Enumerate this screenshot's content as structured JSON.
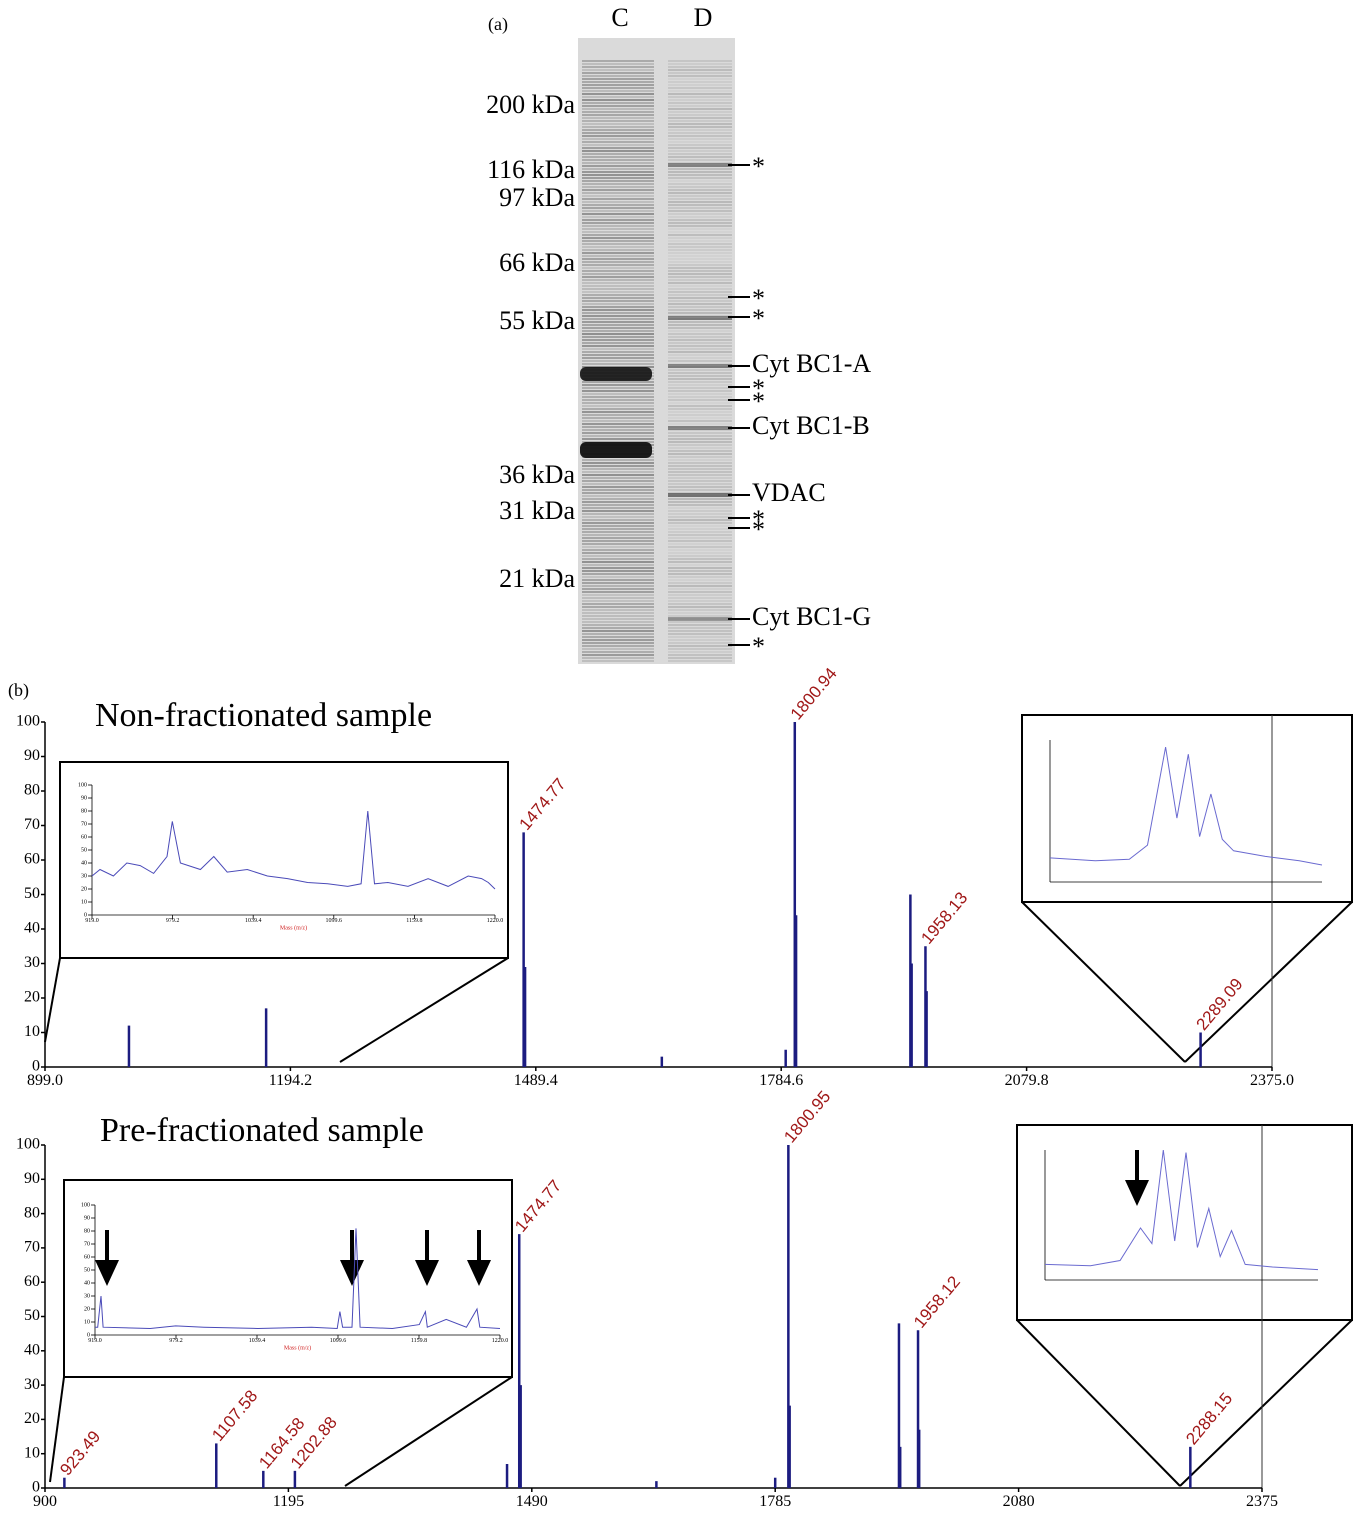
{
  "panel_a": {
    "label": "(a)",
    "lanes": [
      "C",
      "D"
    ],
    "markers": [
      "200 kDa",
      "116 kDa",
      "97 kDa",
      "66 kDa",
      "55 kDa",
      "36 kDa",
      "31 kDa",
      "21 kDa"
    ],
    "annotations": [
      "*",
      "*",
      "*",
      "Cyt BC1-A",
      "*",
      "*",
      "Cyt BC1-B",
      "VDAC",
      "*",
      "*",
      "Cyt BC1-G",
      "*"
    ]
  },
  "panel_b_label": "(b)",
  "chart_data": [
    {
      "type": "stem",
      "title": "Non-fractionated sample",
      "xlim": [
        899,
        2375
      ],
      "xticks": [
        {
          "value": 899,
          "label": "899.0"
        },
        1194.2,
        1489.4,
        1784.6,
        2079.8,
        {
          "value": 2375,
          "label": "2375.0"
        }
      ],
      "ylim": [
        0,
        100
      ],
      "yticks": [
        0,
        10,
        20,
        30,
        40,
        50,
        60,
        70,
        80,
        90,
        100
      ],
      "label_color": "#a01818",
      "series": [
        {
          "color": "#1c1c80",
          "x": [
            1000,
            1165,
            1474.77,
            1476.5,
            1641,
            1790,
            1800.94,
            1802.5,
            1940,
            1941.5,
            1958.13,
            1959.5,
            2289.09
          ],
          "values": [
            12,
            17,
            68,
            29,
            3,
            5,
            100,
            44,
            50,
            30,
            35,
            22,
            10
          ],
          "peak_labels": [
            null,
            null,
            "1474.77",
            null,
            null,
            null,
            "1800.94",
            null,
            null,
            null,
            "1958.13",
            null,
            "2289.09"
          ]
        }
      ],
      "insets": [
        {
          "type": "line",
          "xlim": [
            919,
            1220
          ],
          "xticks": [
            {
              "value": 919,
              "label": "919.0"
            },
            979.2,
            1039.4,
            1099.6,
            1159.8,
            {
              "value": 1220,
              "label": "1220.0"
            }
          ],
          "ylim": [
            0,
            100
          ],
          "yticks": [
            0,
            10,
            20,
            30,
            40,
            50,
            60,
            70,
            80,
            90,
            100
          ],
          "xlabel": "Mass (m/z)",
          "series": [
            {
              "color": "#4a4ab8",
              "x": [
                919,
                925,
                935,
                945,
                955,
                965,
                975,
                979,
                985,
                1000,
                1010,
                1020,
                1035,
                1050,
                1065,
                1080,
                1095,
                1110,
                1120,
                1125,
                1130,
                1140,
                1155,
                1170,
                1185,
                1200,
                1210,
                1215,
                1220
              ],
              "values": [
                30,
                35,
                30,
                40,
                38,
                32,
                45,
                72,
                40,
                35,
                45,
                33,
                35,
                30,
                28,
                25,
                24,
                22,
                24,
                80,
                24,
                25,
                22,
                28,
                22,
                30,
                28,
                25,
                20
              ]
            }
          ]
        },
        {
          "type": "line",
          "xlim": [
            2284,
            2296
          ],
          "ylim": [
            0,
            100
          ],
          "series": [
            {
              "color": "#6a6ad0",
              "x": [
                2284,
                2286,
                2287.5,
                2288.3,
                2289.1,
                2289.6,
                2290.1,
                2290.6,
                2291.1,
                2291.6,
                2292.1,
                2293.5,
                2295,
                2296
              ],
              "values": [
                17,
                15,
                16,
                26,
                95,
                45,
                90,
                32,
                62,
                30,
                22,
                18,
                15,
                12
              ]
            }
          ]
        }
      ]
    },
    {
      "type": "stem",
      "title": "Pre-fractionated sample",
      "xlim": [
        900,
        2375
      ],
      "xticks": [
        900,
        1195,
        1490,
        1785,
        2080,
        2375
      ],
      "ylim": [
        0,
        100
      ],
      "yticks": [
        0,
        10,
        20,
        30,
        40,
        50,
        60,
        70,
        80,
        90,
        100
      ],
      "label_color": "#a01818",
      "series": [
        {
          "color": "#1c1c80",
          "x": [
            923.49,
            1107.58,
            1164.58,
            1202.88,
            1460,
            1474.77,
            1476.5,
            1641,
            1785,
            1800.95,
            1802.5,
            1935,
            1936.5,
            1958.12,
            1959.5,
            2288.15
          ],
          "values": [
            3,
            13,
            5,
            5,
            7,
            74,
            30,
            2,
            3,
            100,
            24,
            48,
            12,
            46,
            17,
            12
          ],
          "peak_labels": [
            "923.49",
            "1107.58",
            "1164.58",
            "1202.88",
            null,
            "1474.77",
            null,
            null,
            null,
            "1800.95",
            null,
            null,
            null,
            "1958.12",
            null,
            "2288.15"
          ]
        }
      ],
      "insets": [
        {
          "type": "line",
          "xlim": [
            919,
            1220
          ],
          "xticks": [
            {
              "value": 919,
              "label": "919.0"
            },
            979.2,
            1039.4,
            1099.6,
            1159.8,
            {
              "value": 1220,
              "label": "1220.0"
            }
          ],
          "ylim": [
            0,
            100
          ],
          "yticks": [
            0,
            10,
            20,
            30,
            40,
            50,
            60,
            70,
            80,
            90,
            100
          ],
          "xlabel": "Mass (m/z)",
          "series": [
            {
              "color": "#4a4ab8",
              "x": [
                919,
                921,
                923.49,
                925,
                960,
                979,
                1000,
                1040,
                1080,
                1099,
                1101,
                1103,
                1110,
                1113,
                1116,
                1140,
                1160,
                1164.58,
                1166,
                1180,
                1195,
                1202.88,
                1205,
                1220
              ],
              "values": [
                6,
                6,
                30,
                6,
                5,
                7,
                6,
                5,
                6,
                5,
                18,
                6,
                6,
                82,
                6,
                5,
                8,
                18,
                6,
                12,
                6,
                20,
                6,
                5
              ]
            }
          ]
        },
        {
          "type": "line",
          "xlim": [
            2283,
            2295
          ],
          "ylim": [
            0,
            100
          ],
          "series": [
            {
              "color": "#6a6ad0",
              "x": [
                2283,
                2285,
                2286.3,
                2287.2,
                2287.7,
                2288.2,
                2288.7,
                2289.2,
                2289.7,
                2290.2,
                2290.7,
                2291.2,
                2291.8,
                2293,
                2295
              ],
              "values": [
                12,
                11,
                15,
                40,
                28,
                100,
                30,
                98,
                25,
                55,
                18,
                38,
                12,
                10,
                8
              ]
            }
          ]
        }
      ]
    }
  ]
}
